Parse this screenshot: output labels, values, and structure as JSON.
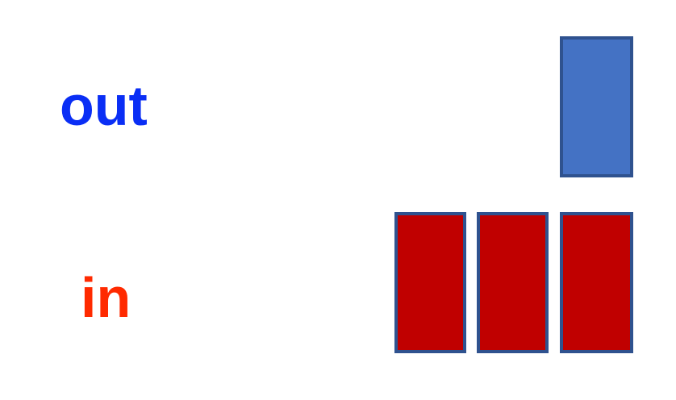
{
  "labels": {
    "out": "out",
    "in": "in"
  },
  "colors": {
    "out_text": "#0A2EF5",
    "in_text": "#FF2A00",
    "out_block_fill": "#4472C4",
    "in_block_fill": "#C00000",
    "block_border": "#2F528F"
  },
  "blocks": {
    "out_count": 1,
    "in_count": 3
  }
}
